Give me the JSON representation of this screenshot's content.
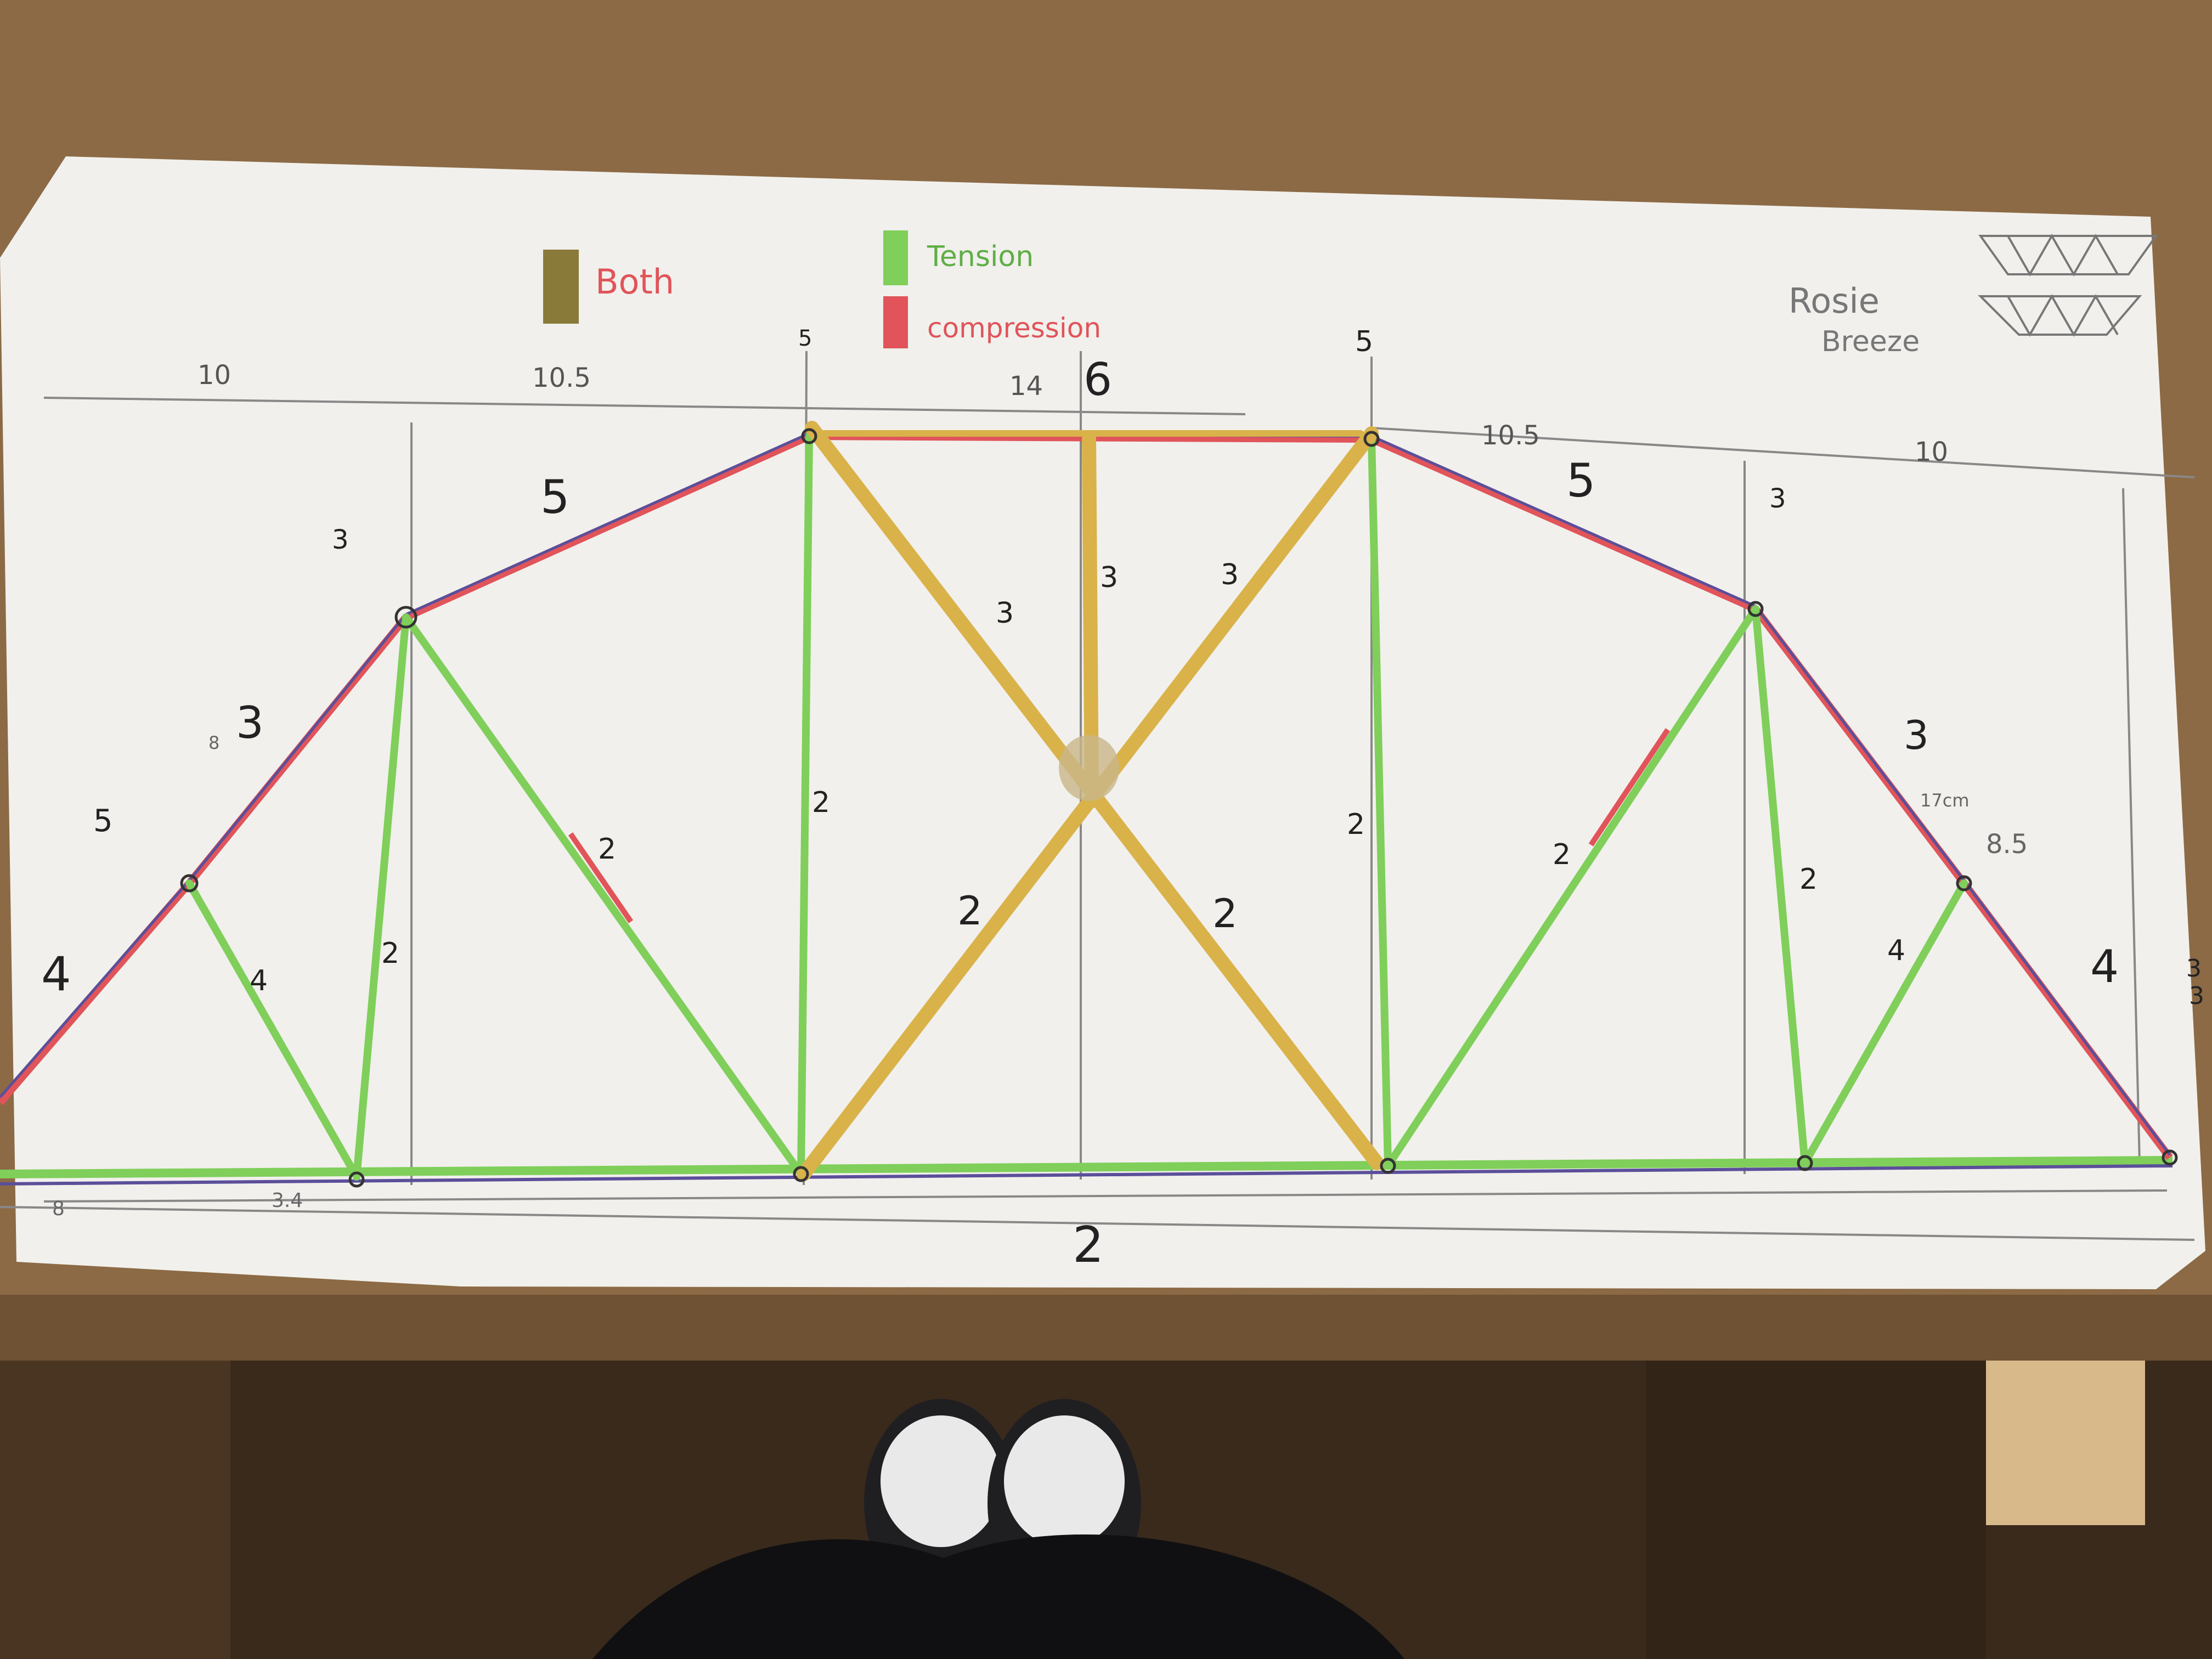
{
  "legend": {
    "both": "Both",
    "tension": "Tension",
    "compression": "compression"
  },
  "name": {
    "first": "Rosie",
    "last": "Breeze"
  },
  "top_dimensions": {
    "left_1": "10",
    "left_2": "10.5",
    "center": "14",
    "right_1": "10.5",
    "right_2": "10"
  },
  "member_labels": {
    "top_chord_left": "5",
    "top_chord_right": "5",
    "top_center": "6",
    "left_upper_chord": "3",
    "right_upper_chord": "3",
    "left_end": "4",
    "right_end": "4",
    "vertical_center_left": "2",
    "vertical_center_right": "2",
    "diag_left": "2",
    "diag_right": "2",
    "vertical_left": "2",
    "vertical_right": "2",
    "small_diag_left": "4",
    "small_diag_right": "4",
    "center_post": "3",
    "x_upper_left": "3",
    "x_upper_right": "3",
    "x_lower_left": "2",
    "x_lower_right": "2",
    "bottom_chord": "2",
    "node_left_top": "5",
    "node_right_top": "5",
    "node_left_mid": "3",
    "node_right_mid": "3",
    "node_left_low": "5",
    "node_right_low": "3",
    "bottom_left": "8",
    "bottom_left_2": "3.4",
    "right_cm": "17cm",
    "right_85": "8.5",
    "left_small": "8",
    "far_right": "3"
  },
  "colors": {
    "paper": "#f1f0ec",
    "wood": "#8c6a45",
    "floor": "#3a2a1c",
    "tension": "#7fcf5a",
    "compression": "#e0545a",
    "pasta": "#d9b24a",
    "pencil": "#555555",
    "ink": "#222222"
  }
}
